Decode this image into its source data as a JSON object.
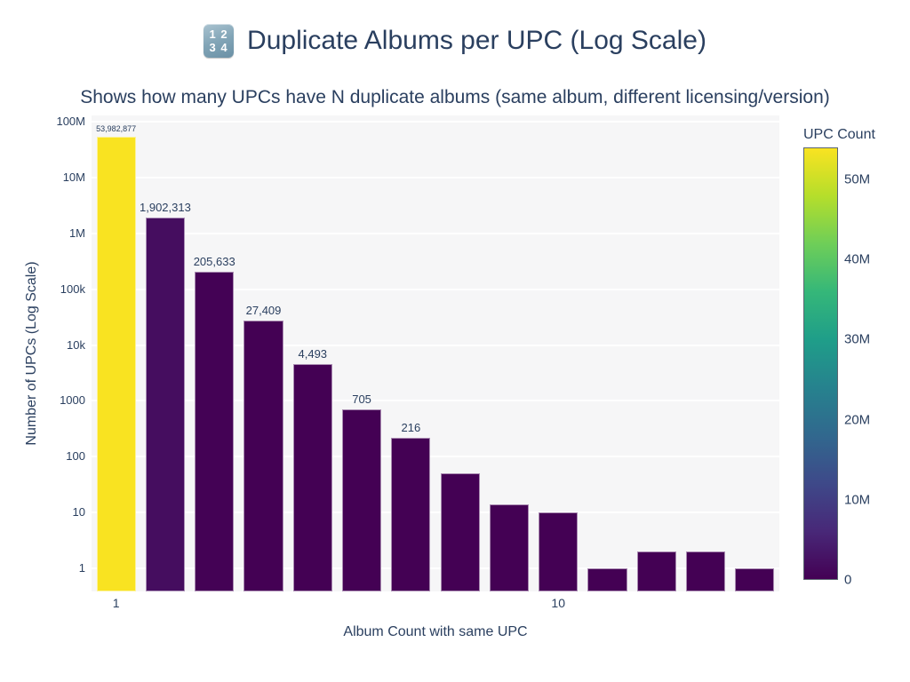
{
  "header": {
    "icon_digits": [
      "1 2",
      "3 4"
    ],
    "title": "Duplicate Albums per UPC (Log Scale)",
    "subtitle": "Shows how many UPCs have N duplicate albums (same album, different licensing/version)"
  },
  "chart_data": {
    "type": "bar",
    "title": "Duplicate Albums per UPC (Log Scale)",
    "subtitle": "Shows how many UPCs have N duplicate albums (same album, different licensing/version)",
    "xlabel": "Album Count with same UPC",
    "ylabel": "Number of UPCs (Log Scale)",
    "x": [
      1,
      2,
      3,
      4,
      5,
      6,
      7,
      8,
      9,
      10,
      11,
      12,
      13,
      14
    ],
    "values": [
      53982877,
      1902313,
      205633,
      27409,
      4493,
      705,
      216,
      50,
      14,
      10,
      1,
      2,
      2,
      1
    ],
    "bar_labels": [
      "53,982,877",
      "1,902,313",
      "205,633",
      "27,409",
      "4,493",
      "705",
      "216",
      "",
      "",
      "",
      "",
      "",
      "",
      ""
    ],
    "y_scale": "log",
    "grid": true,
    "bar_width_units": 0.8,
    "x_axis": {
      "range": [
        0.5,
        14.5
      ],
      "ticks": [
        {
          "value": 1,
          "label": "1"
        },
        {
          "value": 10,
          "label": "10"
        }
      ]
    },
    "y_axis": {
      "log_range": [
        -0.414,
        8.114
      ],
      "ticks": [
        {
          "value": 1,
          "label": "1"
        },
        {
          "value": 10,
          "label": "10"
        },
        {
          "value": 100,
          "label": "100"
        },
        {
          "value": 1000,
          "label": "1000"
        },
        {
          "value": 10000,
          "label": "10k"
        },
        {
          "value": 100000,
          "label": "100k"
        },
        {
          "value": 1000000,
          "label": "1M"
        },
        {
          "value": 10000000,
          "label": "10M"
        },
        {
          "value": 100000000,
          "label": "100M"
        }
      ]
    },
    "colorbar": {
      "title": "UPC Count",
      "min": 0,
      "max": 53982877,
      "ticks": [
        {
          "value": 0,
          "label": "0"
        },
        {
          "value": 10000000,
          "label": "10M"
        },
        {
          "value": 20000000,
          "label": "20M"
        },
        {
          "value": 30000000,
          "label": "30M"
        },
        {
          "value": 40000000,
          "label": "40M"
        },
        {
          "value": 50000000,
          "label": "50M"
        }
      ]
    },
    "colors": {
      "text": "#2a3f5f",
      "plot_bg": "#f6f6f7",
      "grid": "#ffffff",
      "bar_border": "rgba(255,255,255,0.55)",
      "bar_colors": [
        "#f9e321",
        "#450d5f",
        "#440255",
        "#440154",
        "#440154",
        "#440154",
        "#440154",
        "#440154",
        "#440154",
        "#440154",
        "#440154",
        "#440154",
        "#440154",
        "#440154"
      ],
      "viridis_stops": [
        "#440154",
        "#482878",
        "#3e4989",
        "#31688e",
        "#26828e",
        "#1f9e89",
        "#35b779",
        "#6ece58",
        "#b5de2b",
        "#f9e321"
      ]
    }
  }
}
